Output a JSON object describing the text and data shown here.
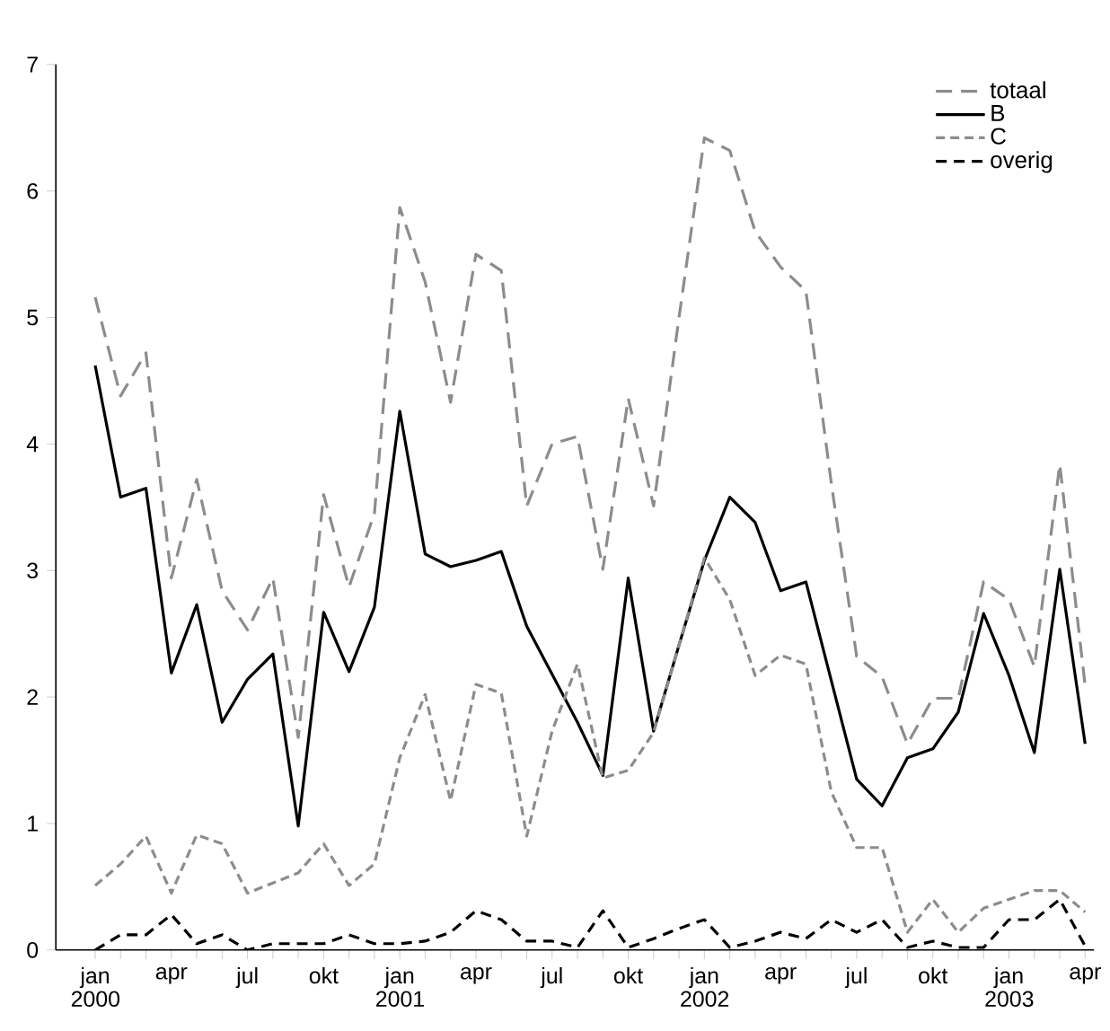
{
  "chart_data": {
    "type": "line",
    "categories": [
      "jan 2000",
      null,
      null,
      "apr",
      null,
      null,
      "jul",
      null,
      null,
      "okt",
      null,
      null,
      "jan 2001",
      null,
      null,
      "apr",
      null,
      null,
      "jul",
      null,
      null,
      "okt",
      null,
      null,
      "jan 2002",
      null,
      null,
      "apr",
      null,
      null,
      "jul",
      null,
      null,
      "okt",
      null,
      null,
      "jan 2003",
      null,
      null,
      "apr"
    ],
    "series": [
      {
        "name": "totaal",
        "color": "#8c8c8c",
        "line_style": "dashed",
        "values": [
          5.16,
          4.38,
          4.72,
          2.94,
          3.72,
          2.84,
          2.53,
          2.94,
          1.68,
          3.6,
          2.87,
          3.45,
          5.87,
          5.28,
          4.33,
          5.5,
          5.37,
          3.51,
          4.0,
          4.06,
          3.01,
          4.36,
          3.51,
          5.0,
          6.42,
          6.32,
          5.68,
          5.4,
          5.21,
          3.69,
          2.32,
          2.16,
          1.63,
          1.99,
          1.99,
          2.91,
          2.77,
          2.24,
          3.84,
          2.09
        ]
      },
      {
        "name": "B",
        "color": "#000000",
        "line_style": "solid",
        "values": [
          4.62,
          3.58,
          3.65,
          2.19,
          2.73,
          1.8,
          2.14,
          2.34,
          0.98,
          2.67,
          2.2,
          2.71,
          4.26,
          3.13,
          3.03,
          3.08,
          3.15,
          2.56,
          2.18,
          1.8,
          1.38,
          2.94,
          1.73,
          2.41,
          3.08,
          3.58,
          3.38,
          2.84,
          2.91,
          2.13,
          1.35,
          1.14,
          1.52,
          1.59,
          1.88,
          2.66,
          2.17,
          1.56,
          3.01,
          1.63
        ]
      },
      {
        "name": "C",
        "color": "#8c8c8c",
        "line_style": "dashed",
        "values": [
          0.51,
          0.68,
          0.9,
          0.45,
          0.91,
          0.84,
          0.45,
          0.53,
          0.61,
          0.84,
          0.51,
          0.68,
          1.52,
          2.02,
          1.18,
          2.1,
          2.03,
          0.9,
          1.73,
          2.26,
          1.36,
          1.42,
          1.72,
          2.41,
          3.1,
          2.77,
          2.17,
          2.33,
          2.26,
          1.25,
          0.81,
          0.81,
          0.14,
          0.4,
          0.14,
          0.33,
          0.4,
          0.47,
          0.47,
          0.3
        ]
      },
      {
        "name": "overig",
        "color": "#000000",
        "line_style": "dashed",
        "values": [
          0,
          0.12,
          0.12,
          0.28,
          0.05,
          0.12,
          0,
          0.05,
          0.05,
          0.05,
          0.12,
          0.05,
          0.05,
          0.07,
          0.14,
          0.31,
          0.24,
          0.07,
          0.07,
          0.02,
          0.31,
          0.02,
          0.09,
          0.17,
          0.24,
          0.02,
          0.07,
          0.14,
          0.09,
          0.24,
          0.14,
          0.24,
          0.02,
          0.07,
          0.02,
          0.02,
          0.24,
          0.24,
          0.4,
          0.03
        ]
      }
    ],
    "ylim": [
      0,
      7
    ],
    "yticks": [
      0,
      1,
      2,
      3,
      4,
      5,
      6,
      7
    ],
    "legend": "top right",
    "marker": "none"
  }
}
